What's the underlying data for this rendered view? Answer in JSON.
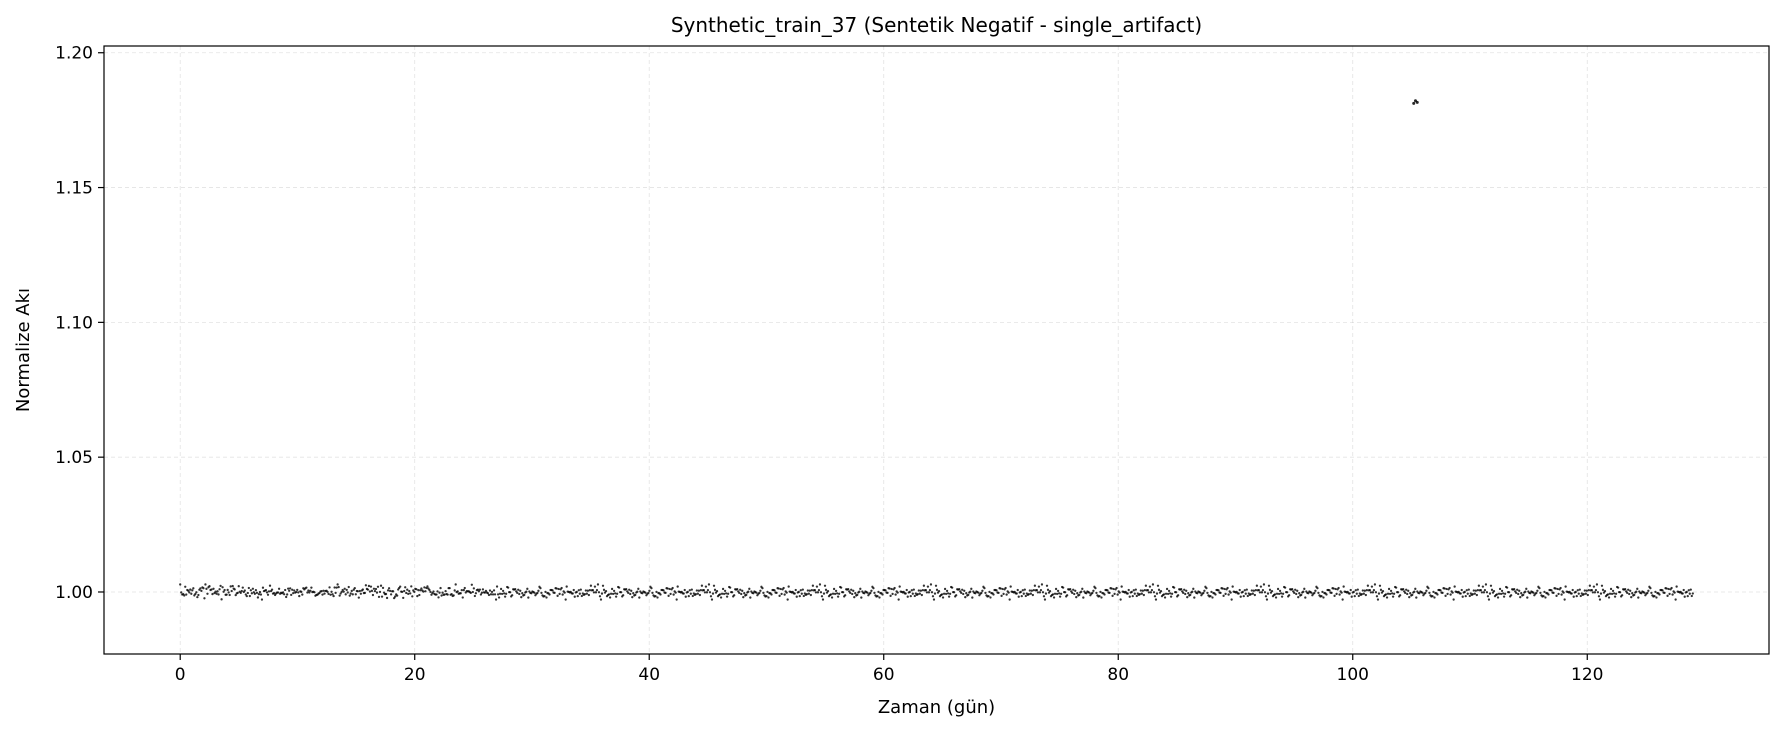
{
  "chart_data": {
    "type": "scatter",
    "title": "Synthetic_train_37 (Sentetik Negatif - single_artifact)",
    "xlabel": "Zaman (gün)",
    "ylabel": "Normalize Akı",
    "xlim": [
      -6.5,
      135.5
    ],
    "ylim": [
      0.977,
      1.2025
    ],
    "xticks": [
      0,
      20,
      40,
      60,
      80,
      100,
      120
    ],
    "yticks": [
      1.0,
      1.05,
      1.1,
      1.15,
      1.2
    ],
    "xtick_labels": [
      "0",
      "20",
      "40",
      "60",
      "80",
      "100",
      "120"
    ],
    "ytick_labels": [
      "1.00",
      "1.05",
      "1.10",
      "1.15",
      "1.20"
    ],
    "grid": true,
    "marker_color": "#000000",
    "series": [
      {
        "baseline": {
          "x_start": 0,
          "x_end": 129,
          "y": 1.0,
          "y_scatter": 0.0012,
          "n_points": 1500
        },
        "artifact": {
          "x": [
            105.2,
            105.35,
            105.5
          ],
          "y": [
            1.1812,
            1.1822,
            1.1816
          ]
        }
      }
    ]
  }
}
